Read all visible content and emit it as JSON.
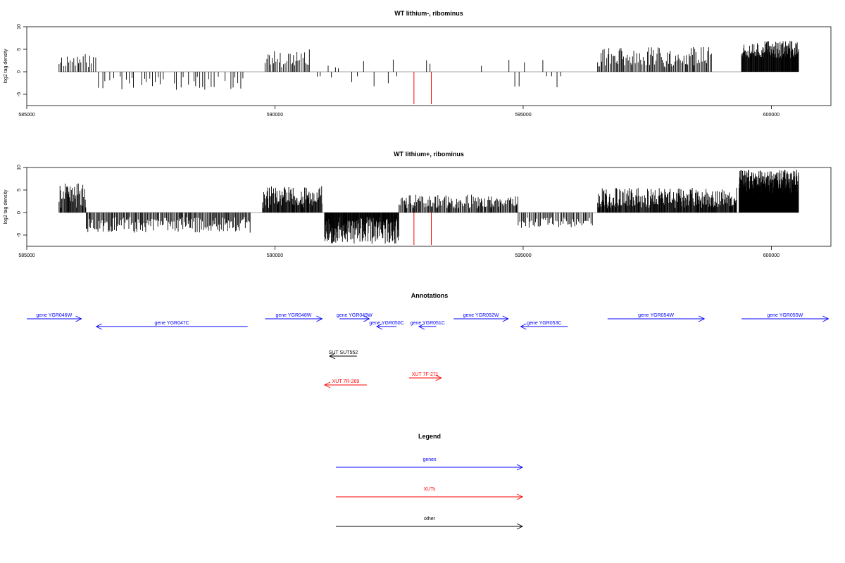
{
  "colors": {
    "genes": "#0000ff",
    "xuts": "#ff0000",
    "other": "#000000",
    "baseline": "#888888"
  },
  "chart_data": [
    {
      "type": "bar",
      "title": "WT lithium-, ribominus",
      "xlabel": "",
      "ylabel": "log2 tag density",
      "xlim": [
        585000,
        601200
      ],
      "ylim": [
        -7.5,
        10
      ],
      "xticks": [
        "585000",
        "590000",
        "595000",
        "600000"
      ],
      "xtick_values": [
        585000,
        590000,
        595000,
        600000
      ],
      "yticks": [
        "-5",
        "0",
        "5",
        "10"
      ],
      "ytick_values": [
        -5,
        0,
        5,
        10
      ],
      "series": [
        {
          "name": "",
          "color": "#000000",
          "segments": [
            {
              "from": 585650,
              "to": 586400,
              "min": 1,
              "max": 4,
              "step": 35,
              "seed": 11
            },
            {
              "from": 586400,
              "to": 589500,
              "min": -4,
              "max": -1,
              "step": 45,
              "seed": 13
            },
            {
              "from": 589800,
              "to": 590700,
              "min": 1,
              "max": 5,
              "step": 30,
              "seed": 17
            },
            {
              "from": 590800,
              "to": 592600,
              "min": -3.5,
              "max": 3,
              "step": 90,
              "seed": 19
            },
            {
              "from": 593000,
              "to": 593500,
              "min": 1,
              "max": 4,
              "step": 60,
              "seed": 23
            },
            {
              "from": 594000,
              "to": 595900,
              "min": -3.5,
              "max": 3,
              "step": 120,
              "seed": 29
            },
            {
              "from": 596500,
              "to": 598800,
              "min": 1,
              "max": 5.5,
              "step": 22,
              "seed": 31
            },
            {
              "from": 599400,
              "to": 600550,
              "min": 3,
              "max": 7,
              "step": 9,
              "seed": 37
            }
          ]
        },
        {
          "name": "",
          "color": "#ff0000",
          "points": [
            {
              "x": 592800,
              "y": -7.2
            },
            {
              "x": 593150,
              "y": -7.2
            }
          ]
        }
      ]
    },
    {
      "type": "bar",
      "title": "WT lithium+, ribominus",
      "xlabel": "",
      "ylabel": "log2 tag density",
      "xlim": [
        585000,
        601200
      ],
      "ylim": [
        -7.5,
        10
      ],
      "xticks": [
        "585000",
        "590000",
        "595000",
        "600000"
      ],
      "xtick_values": [
        585000,
        590000,
        595000,
        600000
      ],
      "yticks": [
        "-5",
        "0",
        "5",
        "10"
      ],
      "ytick_values": [
        -5,
        0,
        5,
        10
      ],
      "series": [
        {
          "name": "",
          "color": "#000000",
          "segments": [
            {
              "from": 585650,
              "to": 586200,
              "min": 1,
              "max": 6.5,
              "step": 14,
              "seed": 41
            },
            {
              "from": 586200,
              "to": 589500,
              "min": -4.5,
              "max": -1,
              "step": 20,
              "seed": 43
            },
            {
              "from": 589750,
              "to": 590950,
              "min": 1,
              "max": 6,
              "step": 12,
              "seed": 47
            },
            {
              "from": 591000,
              "to": 592500,
              "min": -7,
              "max": -1,
              "step": 9,
              "seed": 53
            },
            {
              "from": 592500,
              "to": 594900,
              "min": 1,
              "max": 4,
              "step": 18,
              "seed": 59
            },
            {
              "from": 594900,
              "to": 596400,
              "min": -3.5,
              "max": -1,
              "step": 25,
              "seed": 61
            },
            {
              "from": 596500,
              "to": 599300,
              "min": 1,
              "max": 5.5,
              "step": 12,
              "seed": 67
            },
            {
              "from": 599350,
              "to": 600550,
              "min": 4,
              "max": 9.5,
              "step": 5,
              "seed": 71
            }
          ]
        },
        {
          "name": "",
          "color": "#ff0000",
          "points": [
            {
              "x": 592800,
              "y": -7.2
            },
            {
              "x": 593150,
              "y": -7.2
            }
          ]
        }
      ]
    }
  ],
  "annotations": {
    "title": "Annotations",
    "features": [
      {
        "label": "gene YGR046W",
        "type": "genes",
        "start": 585000,
        "end": 586100,
        "strand": "+",
        "row": 0
      },
      {
        "label": "gene YGR047C",
        "type": "genes",
        "start": 586400,
        "end": 589450,
        "strand": "-",
        "row": 1
      },
      {
        "label": "gene YGR048W",
        "type": "genes",
        "start": 589800,
        "end": 590950,
        "strand": "+",
        "row": 0
      },
      {
        "label": "gene YGR049W",
        "type": "genes",
        "start": 591300,
        "end": 591900,
        "strand": "+",
        "row": 0
      },
      {
        "label": "gene YGR050C",
        "type": "genes",
        "start": 592050,
        "end": 592450,
        "strand": "-",
        "row": 1
      },
      {
        "label": "gene YGR051C",
        "type": "genes",
        "start": 592900,
        "end": 593250,
        "strand": "-",
        "row": 1
      },
      {
        "label": "gene YGR052W",
        "type": "genes",
        "start": 593600,
        "end": 594700,
        "strand": "+",
        "row": 0
      },
      {
        "label": "gene YGR053C",
        "type": "genes",
        "start": 594950,
        "end": 595900,
        "strand": "-",
        "row": 1
      },
      {
        "label": "gene YGR054W",
        "type": "genes",
        "start": 596700,
        "end": 598650,
        "strand": "+",
        "row": 0
      },
      {
        "label": "gene YGR055W",
        "type": "genes",
        "start": 599400,
        "end": 601150,
        "strand": "+",
        "row": 0
      },
      {
        "label": "SUT SUT552",
        "type": "other",
        "start": 591100,
        "end": 591650,
        "strand": "-",
        "row": 2
      },
      {
        "label": "XUT 7F-271",
        "type": "xuts",
        "start": 592700,
        "end": 593350,
        "strand": "+",
        "row": 3
      },
      {
        "label": "XUT 7R-269",
        "type": "xuts",
        "start": 591000,
        "end": 591850,
        "strand": "-",
        "row": 4
      }
    ]
  },
  "legend": {
    "title": "Legend",
    "items": [
      {
        "label": "genes",
        "type": "genes"
      },
      {
        "label": "XUTs",
        "type": "xuts"
      },
      {
        "label": "other",
        "type": "other"
      }
    ]
  }
}
